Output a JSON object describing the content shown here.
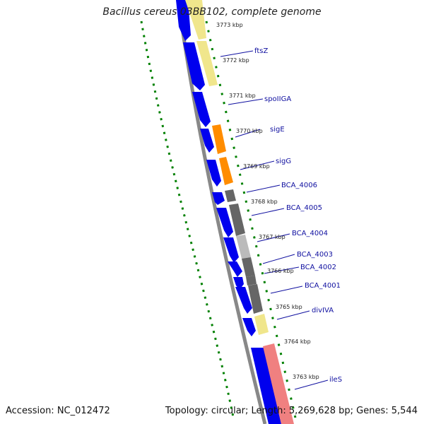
{
  "title": "Bacillus cereus 03BB102, complete genome",
  "footer": {
    "accession": "Accession: NC_012472",
    "topology": "Topology: circular; Length: 5,269,628 bp; Genes: 5,544"
  },
  "ruler_labels": [
    "3773 kbp",
    "3772 kbp",
    "3771 kbp",
    "3770 kbp",
    "3769 kbp",
    "3768 kbp",
    "3767 kbp",
    "3766 kbp",
    "3765 kbp",
    "3764 kbp",
    "3763 kbp"
  ],
  "genes": [
    "ftsZ",
    "spoIIGA",
    "sigE",
    "sigG",
    "BCA_4006",
    "BCA_4005",
    "BCA_4004",
    "BCA_4003",
    "BCA_4002",
    "BCA_4001",
    "divIVA",
    "ileS"
  ],
  "colors": {
    "backbone": "#888888",
    "cds": "#0000ee",
    "ruler_ticks": "#008000",
    "labels": "#1010a0",
    "pale_yellow": "#f0e68c",
    "orange": "#ff8c00",
    "dark_gray": "#666666",
    "light_gray": "#bbbbbb",
    "salmon": "#f08080"
  }
}
